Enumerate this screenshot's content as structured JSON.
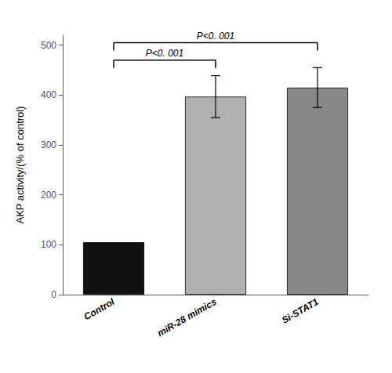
{
  "chart_data": {
    "type": "bar",
    "categories": [
      "Control",
      "miR-28 mimics",
      "Si-STAT1"
    ],
    "values": [
      105,
      397,
      415
    ],
    "errors": [
      0,
      42,
      40
    ],
    "colors": [
      "#111111",
      "#b0b0b0",
      "#888888"
    ],
    "ylabel": "AKP activity/(% of control)",
    "ylim": [
      0,
      520
    ],
    "yticks": [
      0,
      100,
      200,
      300,
      400,
      500
    ],
    "grid": false,
    "annotations": [
      {
        "text": "P<0. 001",
        "x1": "Control",
        "x2": "miR-28 mimics",
        "y": 470
      },
      {
        "text": "P<0. 001",
        "x1": "Control",
        "x2": "Si-STAT1",
        "y": 505
      }
    ]
  }
}
